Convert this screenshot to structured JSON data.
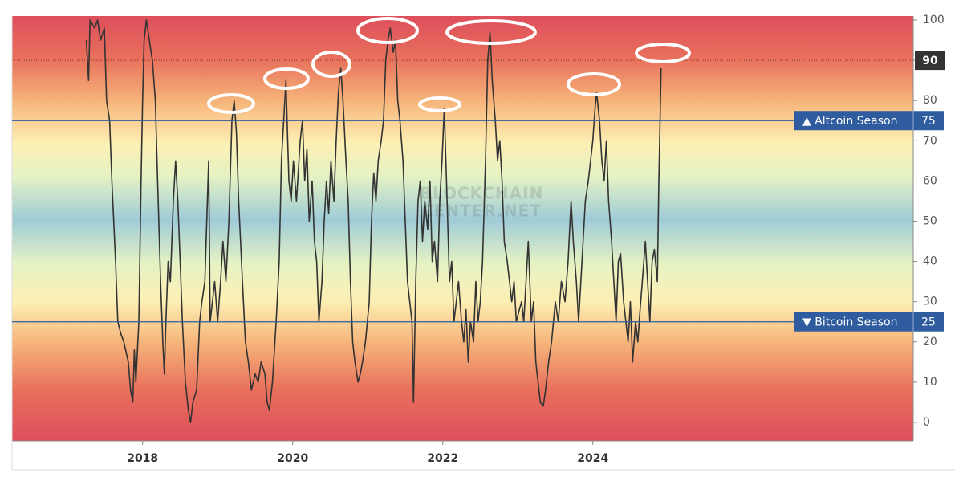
{
  "chart_data": {
    "type": "line",
    "watermark": [
      "BLOCKCHAIN",
      "CENTER.NET"
    ],
    "color": "#333333",
    "x": [
      2017.25,
      2017.28,
      2017.3,
      2017.36,
      2017.4,
      2017.44,
      2017.49,
      2017.52,
      2017.56,
      2017.59,
      2017.64,
      2017.67,
      2017.71,
      2017.75,
      2017.81,
      2017.84,
      2017.87,
      2017.89,
      2017.91,
      2017.95,
      2017.98,
      2018.0,
      2018.02,
      2018.05,
      2018.09,
      2018.13,
      2018.17,
      2018.2,
      2018.24,
      2018.27,
      2018.29,
      2018.31,
      2018.34,
      2018.37,
      2018.41,
      2018.44,
      2018.47,
      2018.5,
      2018.53,
      2018.57,
      2018.61,
      2018.64,
      2018.67,
      2018.72,
      2018.76,
      2018.79,
      2018.83,
      2018.88,
      2018.9,
      2018.93,
      2018.96,
      2019.0,
      2019.04,
      2019.07,
      2019.11,
      2019.15,
      2019.19,
      2019.22,
      2019.25,
      2019.28,
      2019.33,
      2019.37,
      2019.41,
      2019.45,
      2019.5,
      2019.54,
      2019.58,
      2019.63,
      2019.66,
      2019.69,
      2019.73,
      2019.78,
      2019.82,
      2019.85,
      2019.88,
      2019.91,
      2019.95,
      2019.98,
      2020.01,
      2020.05,
      2020.1,
      2020.13,
      2020.16,
      2020.19,
      2020.22,
      2020.26,
      2020.29,
      2020.32,
      2020.35,
      2020.39,
      2020.42,
      2020.45,
      2020.48,
      2020.51,
      2020.55,
      2020.58,
      2020.61,
      2020.64,
      2020.67,
      2020.71,
      2020.74,
      2020.77,
      2020.8,
      2020.83,
      2020.87,
      2020.9,
      2020.93,
      2020.97,
      2021.02,
      2021.05,
      2021.08,
      2021.11,
      2021.14,
      2021.18,
      2021.21,
      2021.24,
      2021.27,
      2021.3,
      2021.34,
      2021.37,
      2021.4,
      2021.43,
      2021.47,
      2021.5,
      2021.53,
      2021.56,
      2021.59,
      2021.61,
      2021.64,
      2021.67,
      2021.7,
      2021.73,
      2021.76,
      2021.8,
      2021.83,
      2021.86,
      2021.89,
      2021.93,
      2021.96,
      2021.99,
      2022.02,
      2022.05,
      2022.09,
      2022.12,
      2022.15,
      2022.18,
      2022.21,
      2022.25,
      2022.28,
      2022.31,
      2022.34,
      2022.37,
      2022.41,
      2022.44,
      2022.47,
      2022.5,
      2022.53,
      2022.57,
      2022.6,
      2022.63,
      2022.66,
      2022.7,
      2022.73,
      2022.76,
      2022.79,
      2022.82,
      2022.86,
      2022.89,
      2022.92,
      2022.95,
      2022.98,
      2023.02,
      2023.05,
      2023.08,
      2023.11,
      2023.14,
      2023.18,
      2023.21,
      2023.24,
      2023.27,
      2023.3,
      2023.34,
      2023.37,
      2023.41,
      2023.45,
      2023.5,
      2023.54,
      2023.58,
      2023.63,
      2023.67,
      2023.71,
      2023.74,
      2023.78,
      2023.81,
      2023.84,
      2023.87,
      2023.9,
      2023.94,
      2023.97,
      2024.0,
      2024.03,
      2024.05,
      2024.09,
      2024.12,
      2024.15,
      2024.18,
      2024.21,
      2024.25,
      2024.28,
      2024.31,
      2024.34,
      2024.37,
      2024.41,
      2024.44,
      2024.47,
      2024.5,
      2024.53,
      2024.57,
      2024.6,
      2024.63,
      2024.66,
      2024.7,
      2024.73,
      2024.76,
      2024.79,
      2024.82,
      2024.86,
      2024.88,
      2024.91
    ],
    "values": [
      95,
      85,
      100,
      98,
      100,
      95,
      98,
      80,
      75,
      60,
      40,
      25,
      22,
      20,
      15,
      8,
      5,
      18,
      10,
      25,
      60,
      80,
      95,
      100,
      95,
      90,
      80,
      60,
      35,
      20,
      12,
      25,
      40,
      35,
      55,
      65,
      55,
      40,
      25,
      10,
      3,
      0,
      5,
      8,
      25,
      30,
      35,
      65,
      25,
      30,
      35,
      25,
      35,
      45,
      35,
      50,
      75,
      80,
      72,
      55,
      35,
      20,
      15,
      8,
      12,
      10,
      15,
      12,
      5,
      3,
      10,
      25,
      40,
      65,
      75,
      85,
      60,
      55,
      65,
      55,
      70,
      75,
      60,
      68,
      50,
      60,
      45,
      40,
      25,
      35,
      50,
      60,
      52,
      65,
      55,
      70,
      82,
      88,
      80,
      65,
      55,
      35,
      20,
      15,
      10,
      12,
      15,
      20,
      30,
      50,
      62,
      55,
      65,
      70,
      75,
      90,
      95,
      98,
      92,
      95,
      80,
      75,
      65,
      50,
      35,
      30,
      25,
      5,
      35,
      55,
      60,
      45,
      55,
      48,
      60,
      40,
      45,
      35,
      55,
      65,
      78,
      60,
      35,
      40,
      25,
      30,
      35,
      25,
      20,
      28,
      15,
      25,
      20,
      35,
      25,
      30,
      40,
      65,
      90,
      97,
      85,
      75,
      65,
      70,
      60,
      45,
      40,
      35,
      30,
      35,
      25,
      28,
      30,
      25,
      35,
      45,
      25,
      30,
      15,
      10,
      5,
      4,
      8,
      15,
      20,
      30,
      25,
      35,
      30,
      40,
      55,
      45,
      35,
      25,
      35,
      45,
      55,
      60,
      65,
      70,
      78,
      82,
      75,
      65,
      60,
      70,
      55,
      45,
      35,
      25,
      40,
      42,
      30,
      25,
      20,
      30,
      15,
      25,
      20,
      28,
      35,
      45,
      35,
      25,
      40,
      43,
      35,
      60,
      88
    ],
    "xlim": [
      2016.26,
      2028.27
    ],
    "xticks": [
      2018,
      2020,
      2022,
      2024
    ],
    "ylim": [
      -4.6,
      101
    ],
    "yticks": [
      0,
      10,
      20,
      30,
      40,
      50,
      60,
      70,
      80,
      90,
      100
    ],
    "highlight_ytick": 90,
    "reference_lines": [
      {
        "value": 75,
        "label": "▲ Altcoin Season",
        "color": "#2e5c9e"
      },
      {
        "value": 25,
        "label": "▼ Bitcoin Season",
        "color": "#2e5c9e"
      }
    ],
    "grid": false
  }
}
